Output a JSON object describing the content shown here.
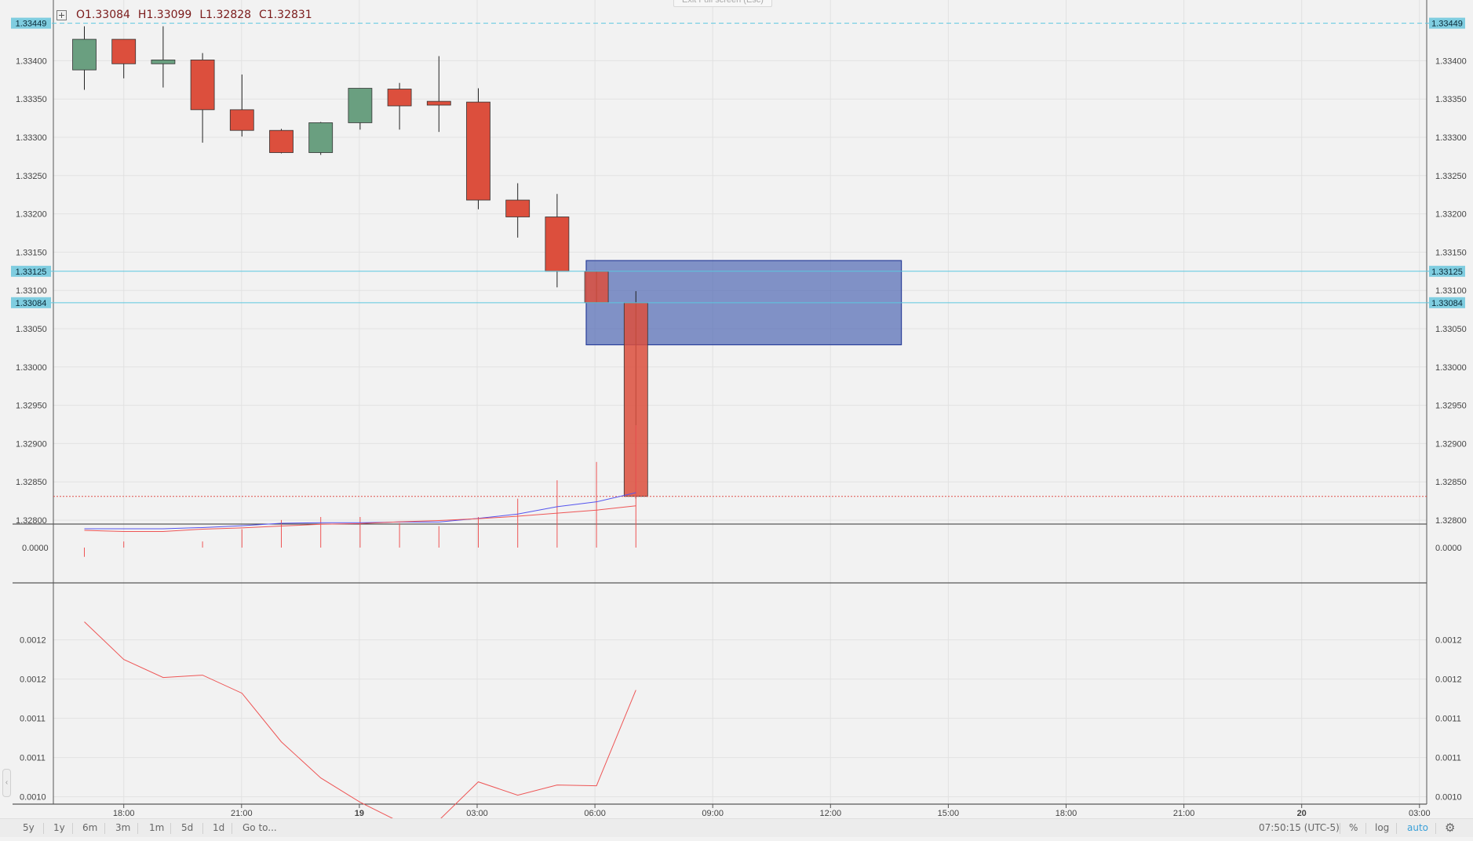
{
  "ohlc": {
    "o": "O1.33084",
    "h": "H1.33099",
    "l": "L1.32828",
    "c": "C1.32831"
  },
  "exit_fullscreen": "Exit Full screen (Esc)",
  "toolbar": {
    "ranges": [
      "5y",
      "1y",
      "6m",
      "3m",
      "1m",
      "5d",
      "1d"
    ],
    "goto": "Go to...",
    "time": "07:50:15 (UTC-5)",
    "percent": "%",
    "log": "log",
    "auto": "auto"
  },
  "colors": {
    "up": "#6a9f80",
    "down": "#dc4f3d",
    "zone": "#5068b4",
    "hline": "#5bc8e0",
    "label_bg": "#7fcde0",
    "close_line": "#e0504a",
    "ind_blue": "#5555ee",
    "ind_red": "#ee5555"
  },
  "chart_data": [
    {
      "type": "candlestick",
      "title": "",
      "xlabel": "",
      "ylabel": "",
      "ylim": [
        1.328,
        1.3345
      ],
      "x_ticks": [
        "18:00",
        "21:00",
        "19",
        "03:00",
        "06:00",
        "09:00",
        "12:00",
        "15:00",
        "18:00",
        "21:00",
        "20",
        "03:00"
      ],
      "y_ticks": [
        "1.32800",
        "1.32850",
        "1.32900",
        "1.32950",
        "1.33000",
        "1.33050",
        "1.33100",
        "1.33150",
        "1.33200",
        "1.33250",
        "1.33300",
        "1.33350",
        "1.33400"
      ],
      "candles": [
        {
          "x": 0,
          "o": 1.33388,
          "h": 1.33445,
          "l": 1.33362,
          "c": 1.33428
        },
        {
          "x": 1,
          "o": 1.33428,
          "h": 1.33428,
          "l": 1.33377,
          "c": 1.33396
        },
        {
          "x": 2,
          "o": 1.33396,
          "h": 1.33445,
          "l": 1.33365,
          "c": 1.33401
        },
        {
          "x": 3,
          "o": 1.33401,
          "h": 1.3341,
          "l": 1.33293,
          "c": 1.33336
        },
        {
          "x": 4,
          "o": 1.33336,
          "h": 1.33382,
          "l": 1.33301,
          "c": 1.33309
        },
        {
          "x": 5,
          "o": 1.33309,
          "h": 1.33311,
          "l": 1.33279,
          "c": 1.3328
        },
        {
          "x": 6,
          "o": 1.3328,
          "h": 1.3332,
          "l": 1.33277,
          "c": 1.33319
        },
        {
          "x": 7,
          "o": 1.33319,
          "h": 1.33364,
          "l": 1.3331,
          "c": 1.33364
        },
        {
          "x": 8,
          "o": 1.33363,
          "h": 1.33371,
          "l": 1.3331,
          "c": 1.33341
        },
        {
          "x": 9,
          "o": 1.33347,
          "h": 1.33406,
          "l": 1.33307,
          "c": 1.33342
        },
        {
          "x": 10,
          "o": 1.33346,
          "h": 1.33364,
          "l": 1.33206,
          "c": 1.33218
        },
        {
          "x": 11,
          "o": 1.33218,
          "h": 1.3324,
          "l": 1.33169,
          "c": 1.33196
        },
        {
          "x": 12,
          "o": 1.33196,
          "h": 1.33226,
          "l": 1.33104,
          "c": 1.33125
        },
        {
          "x": 13,
          "o": 1.33125,
          "h": 1.33125,
          "l": 1.33084,
          "c": 1.33084
        },
        {
          "x": 14,
          "o": 1.33084,
          "h": 1.33099,
          "l": 1.32828,
          "c": 1.32831
        }
      ],
      "price_labels": [
        "1.33449",
        "1.33125",
        "1.33084"
      ],
      "zone": {
        "x_start": 13.0,
        "x_end": 21.0,
        "top": 1.33139,
        "bottom": 1.33029
      }
    },
    {
      "type": "line",
      "title": "",
      "y_ticks": [
        "0.0000"
      ],
      "series": [
        {
          "values": [
            0.0,
            0.0,
            0.0,
            -0.2,
            -0.5,
            -0.9,
            -1.0,
            -1.0,
            -1.1,
            -1.1,
            -1.7,
            -2.4,
            -3.6,
            -4.4,
            -5.9
          ]
        },
        {
          "values": [
            -0.3,
            -0.1,
            -0.1,
            -0.5,
            -0.7,
            -1.0,
            -1.3,
            -1.4,
            -1.7,
            -1.9,
            -2.2,
            -2.6,
            -3.1,
            -3.6,
            -4.3
          ]
        }
      ],
      "histogram": [
        0.15,
        -0.1,
        0.0,
        -0.1,
        -0.3,
        -0.45,
        -0.5,
        -0.5,
        -0.4,
        -0.35,
        -0.5,
        -0.8,
        -1.1,
        -1.4,
        -2.0
      ]
    },
    {
      "type": "line",
      "title": "",
      "y_ticks": [
        "0.0012",
        "0.0012",
        "0.0011",
        "0.0011",
        "0.0010"
      ],
      "series": [
        {
          "values": [
            0.001253,
            0.001205,
            0.001182,
            0.001185,
            0.001162,
            0.0011,
            0.001054,
            0.001023,
            0.000998,
            0.001,
            0.001049,
            0.001032,
            0.001045,
            0.001044,
            0.001166
          ]
        }
      ]
    }
  ]
}
